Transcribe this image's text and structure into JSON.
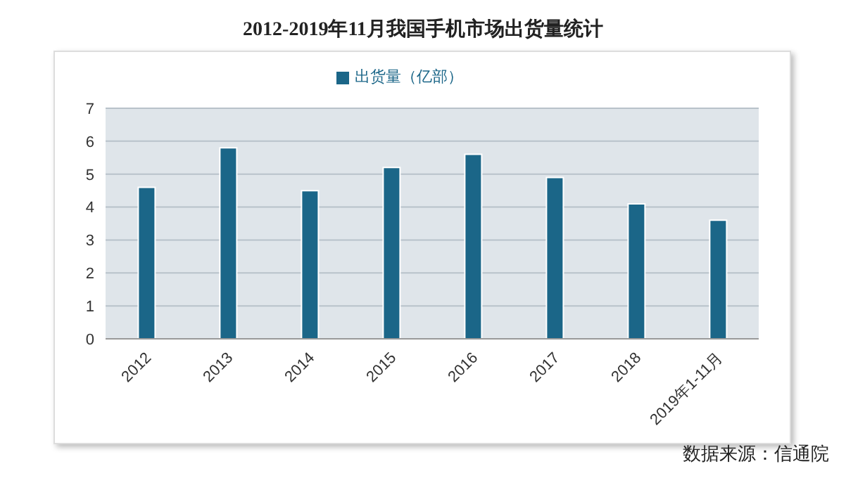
{
  "chart_data": {
    "type": "bar",
    "title": "2012-2019年11月我国手机市场出货量统计",
    "categories": [
      "2012",
      "2013",
      "2014",
      "2015",
      "2016",
      "2017",
      "2018",
      "2019年1-11月"
    ],
    "series": [
      {
        "name": "出货量（亿部）",
        "color": "#1b6688",
        "values": [
          4.6,
          5.8,
          4.5,
          5.2,
          5.6,
          4.9,
          4.1,
          3.6
        ]
      }
    ],
    "ylim": [
      0,
      7
    ],
    "yticks": [
      0,
      1,
      2,
      3,
      4,
      5,
      6,
      7
    ],
    "grid": "y",
    "legend": "top",
    "annotations": [
      "数据来源：信通院"
    ]
  }
}
